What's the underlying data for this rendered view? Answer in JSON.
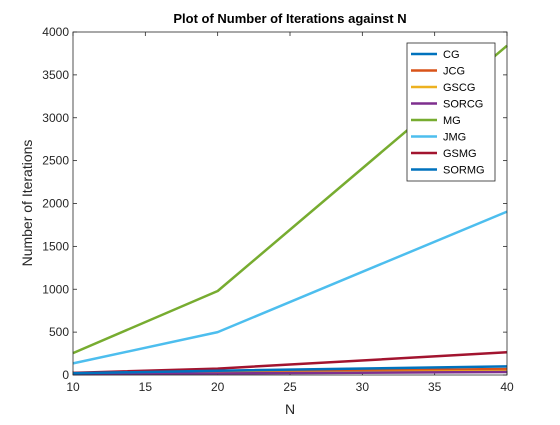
{
  "chart_data": {
    "type": "line",
    "title": "Plot of Number of Iterations against N",
    "xlabel": "N",
    "ylabel": "Number of Iterations",
    "xlim": [
      10,
      40
    ],
    "ylim": [
      0,
      4000
    ],
    "xticks": [
      10,
      15,
      20,
      25,
      30,
      35,
      40
    ],
    "yticks": [
      0,
      500,
      1000,
      1500,
      2000,
      2500,
      3000,
      3500,
      4000
    ],
    "grid": false,
    "legend_position": "top-right",
    "x": [
      10,
      20,
      40
    ],
    "series": [
      {
        "name": "CG",
        "values": [
          15,
          30,
          60
        ],
        "color": "#0072BD"
      },
      {
        "name": "JCG",
        "values": [
          18,
          35,
          70
        ],
        "color": "#D95319"
      },
      {
        "name": "GSCG",
        "values": [
          12,
          22,
          45
        ],
        "color": "#EDB120"
      },
      {
        "name": "SORCG",
        "values": [
          10,
          18,
          35
        ],
        "color": "#7E2F8E"
      },
      {
        "name": "MG",
        "values": [
          255,
          980,
          3840
        ],
        "color": "#77AC30"
      },
      {
        "name": "JMG",
        "values": [
          135,
          500,
          1905
        ],
        "color": "#4DBEEE"
      },
      {
        "name": "GSMG",
        "values": [
          25,
          75,
          265
        ],
        "color": "#A2142F"
      },
      {
        "name": "SORMG",
        "values": [
          20,
          50,
          100
        ],
        "color": "#0072BD"
      }
    ]
  }
}
